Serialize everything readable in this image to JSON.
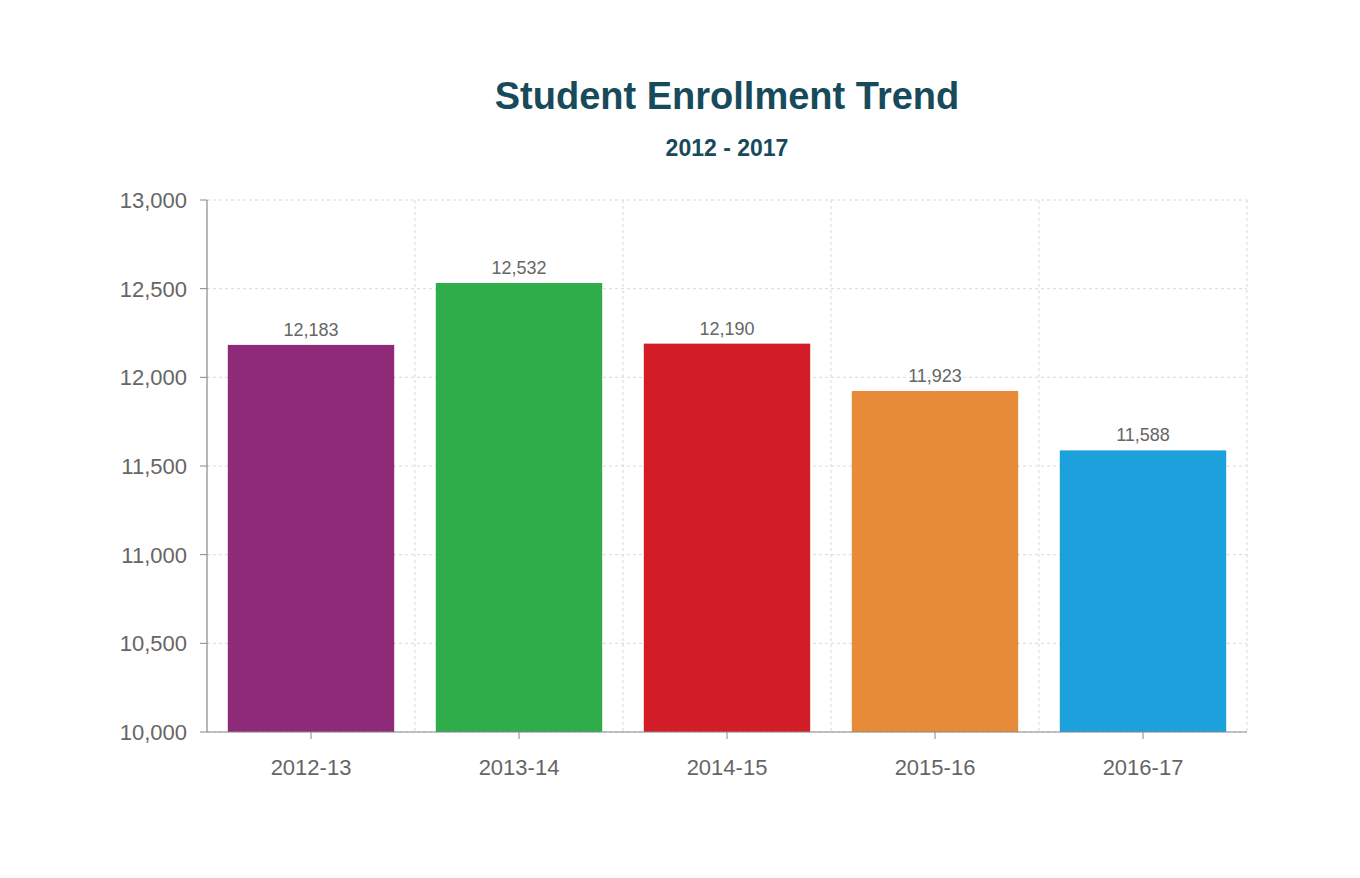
{
  "chart_data": {
    "type": "bar",
    "title": "Student Enrollment Trend",
    "subtitle": "2012 - 2017",
    "categories": [
      "2012-13",
      "2013-14",
      "2014-15",
      "2015-16",
      "2016-17"
    ],
    "values": [
      12183,
      12532,
      12190,
      11923,
      11588
    ],
    "value_labels": [
      "12,183",
      "12,532",
      "12,190",
      "11,923",
      "11,588"
    ],
    "colors": [
      "#8e2a77",
      "#2fad4b",
      "#d21c27",
      "#e78b39",
      "#1ca1dd"
    ],
    "ylim": [
      10000,
      13000
    ],
    "yticks": [
      {
        "value": 10000,
        "label": "10,000"
      },
      {
        "value": 10500,
        "label": "10,500"
      },
      {
        "value": 11000,
        "label": "11,000"
      },
      {
        "value": 11500,
        "label": "11,500"
      },
      {
        "value": 12000,
        "label": "12,000"
      },
      {
        "value": 12500,
        "label": "12,500"
      },
      {
        "value": 13000,
        "label": "13,000"
      }
    ],
    "grid": true,
    "data_labels": true
  }
}
